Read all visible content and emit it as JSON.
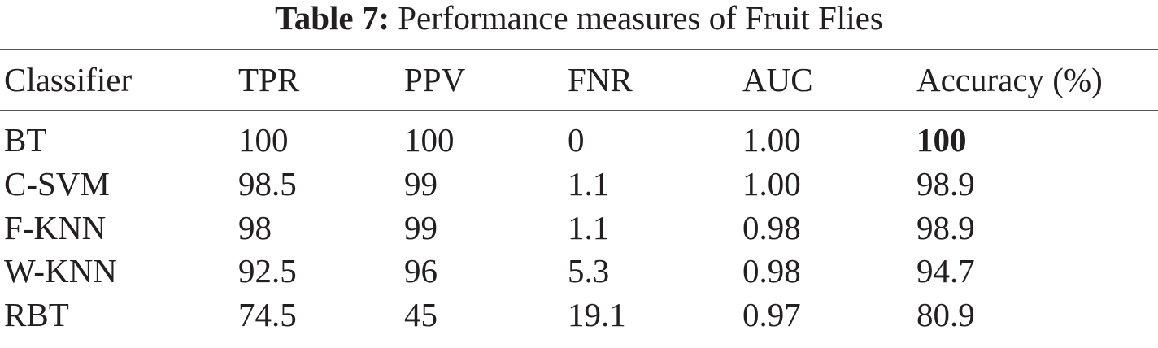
{
  "table": {
    "caption": {
      "label": "Table 7:",
      "text": "Performance measures of Fruit Flies"
    },
    "header": [
      "Classifier",
      "TPR",
      "PPV",
      "FNR",
      "AUC",
      "Accuracy (%)"
    ],
    "rows": [
      [
        "BT",
        "100",
        "100",
        "0",
        "1.00",
        "100"
      ],
      [
        "C-SVM",
        "98.5",
        "99",
        "1.1",
        "1.00",
        "98.9"
      ],
      [
        "F-KNN",
        "98",
        "99",
        "1.1",
        "0.98",
        "98.9"
      ],
      [
        "W-KNN",
        "92.5",
        "96",
        "5.3",
        "0.98",
        "94.7"
      ],
      [
        "RBT",
        "74.5",
        "45",
        "19.1",
        "0.97",
        "80.9"
      ]
    ]
  }
}
